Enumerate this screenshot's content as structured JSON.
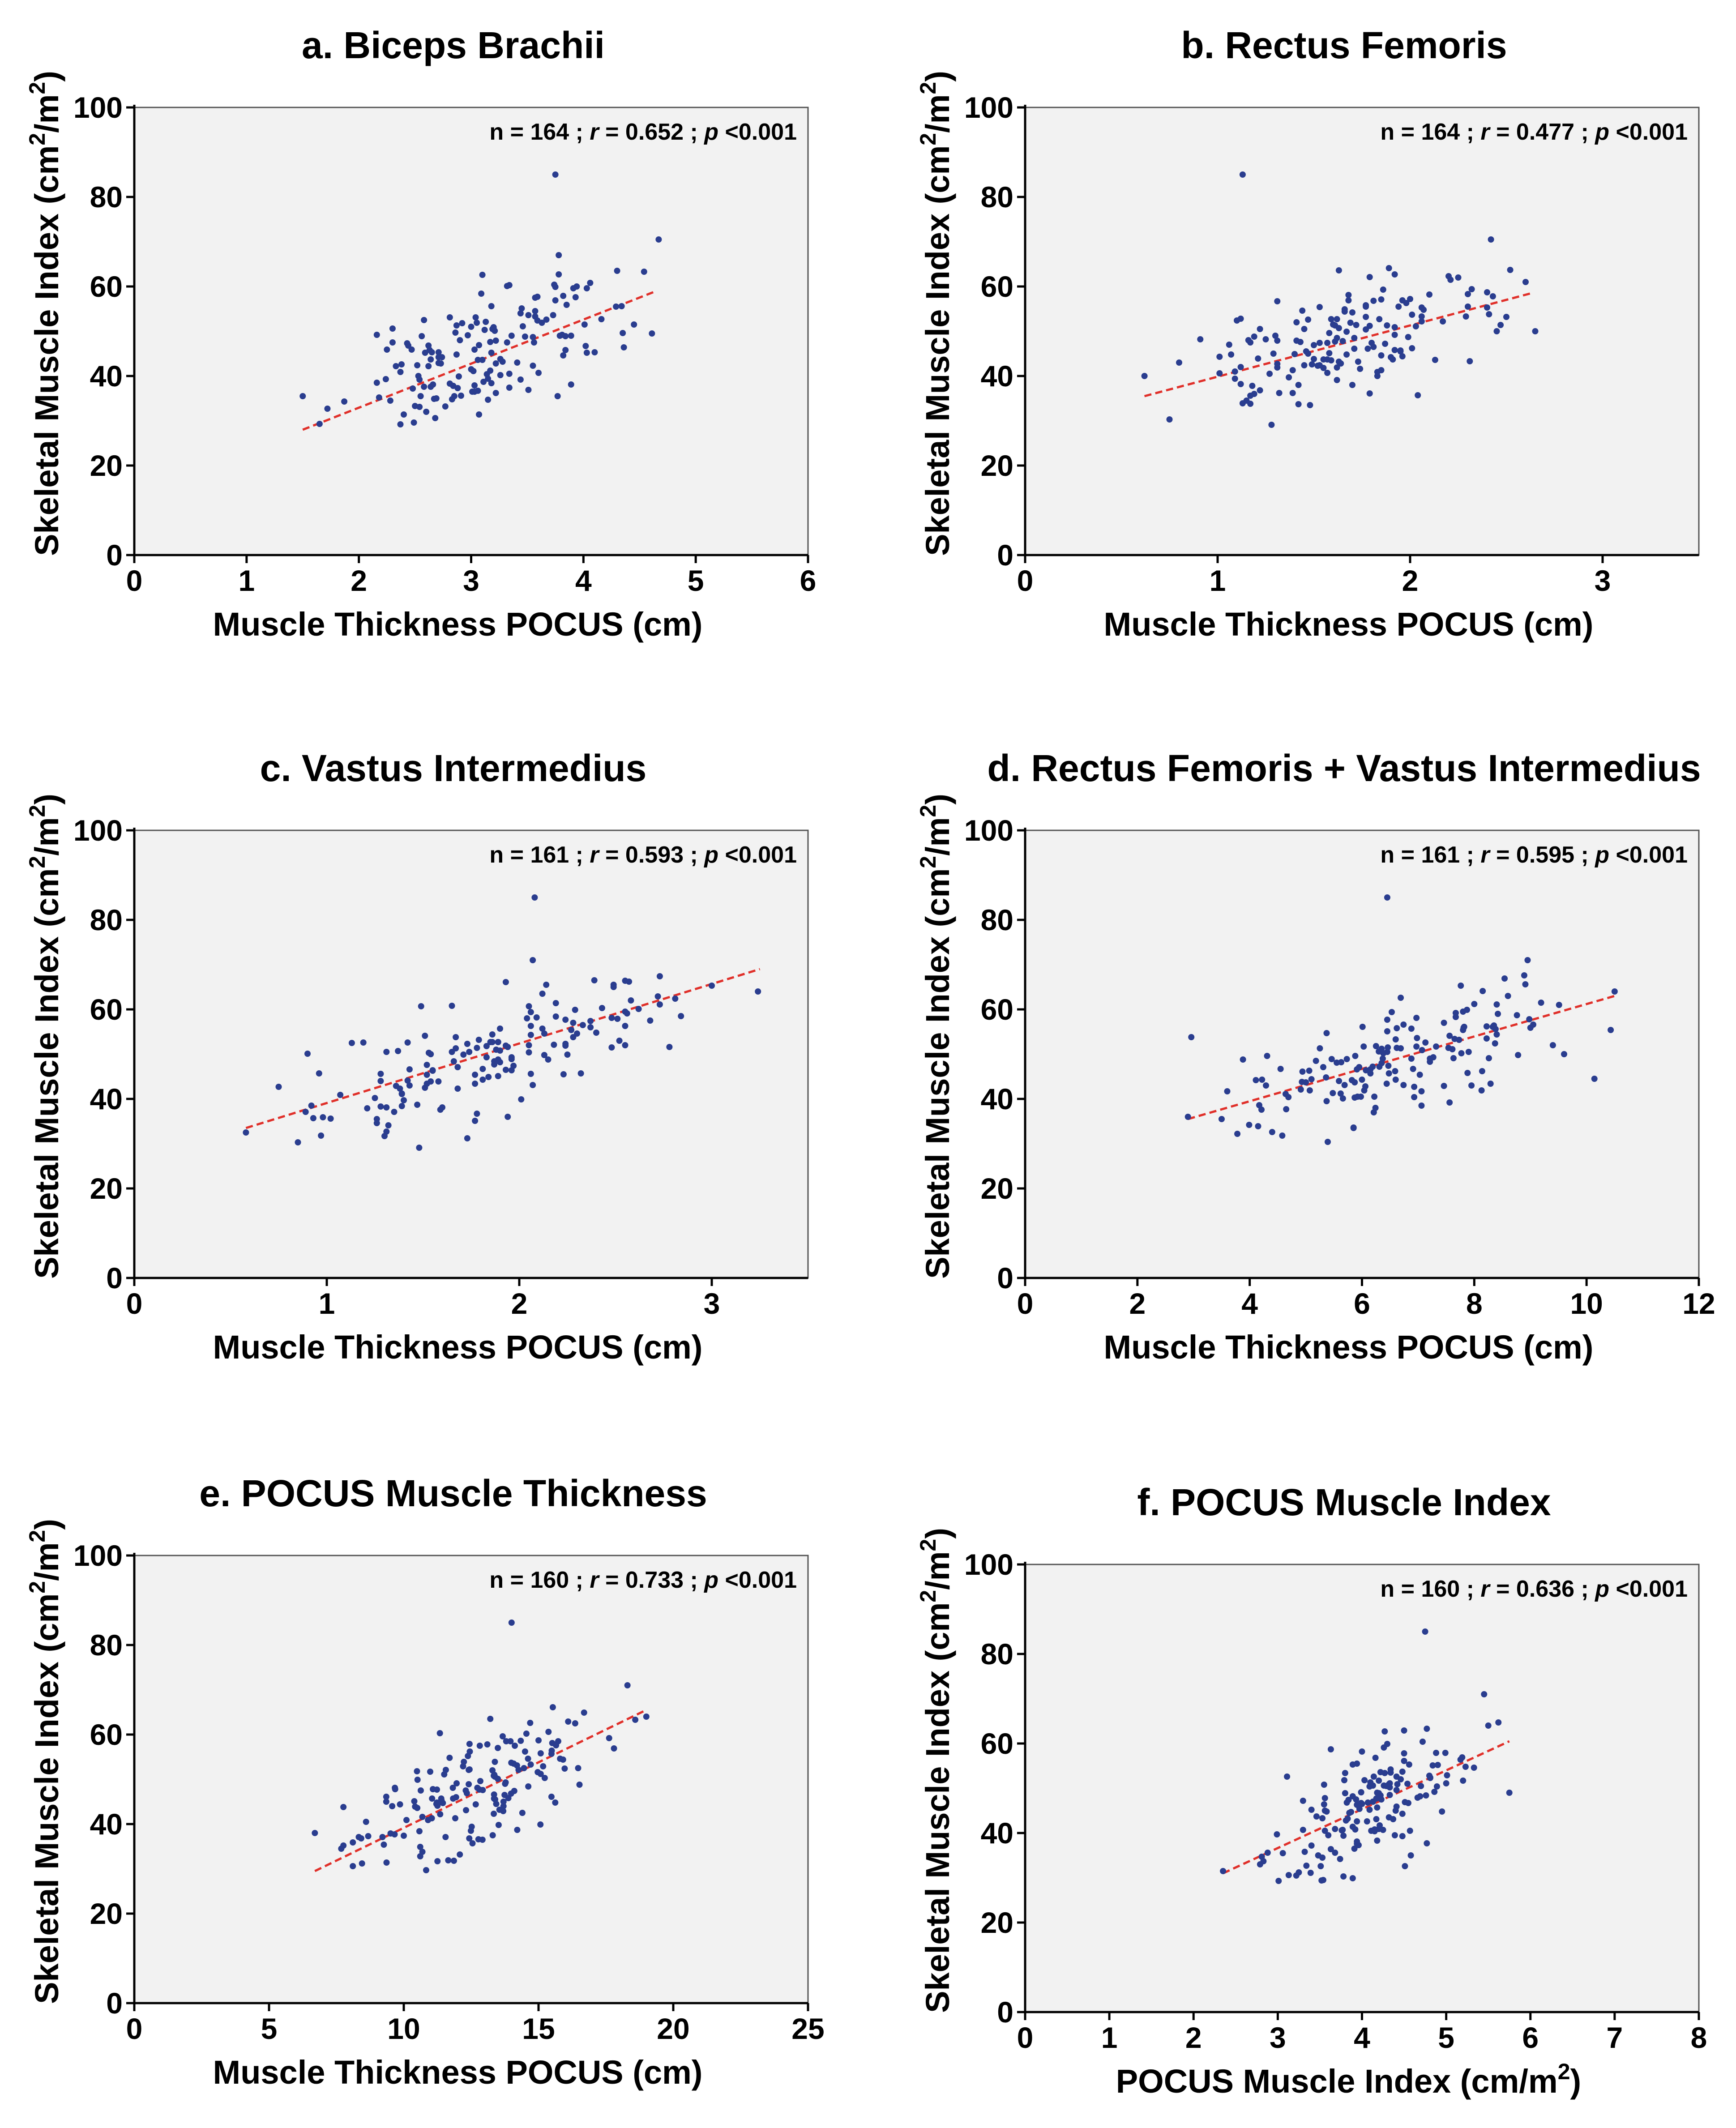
{
  "colors": {
    "points": "#2a3d8f",
    "fit_line": "#e0302a",
    "plot_bg": "#f2f2f2"
  },
  "chart_data": [
    {
      "type": "scatter",
      "title": "a. Biceps Brachii",
      "xlabel": "Muscle Thickness POCUS (cm)",
      "ylabel": "Skeletal Muscle Index (cm2/m2)",
      "ylabel_parts": [
        "Skeletal Muscle Index (cm",
        "2",
        "/m",
        "2",
        ")"
      ],
      "xlabel_parts": [],
      "xlim": [
        0,
        6
      ],
      "ylim": [
        0,
        100
      ],
      "xticks": [
        "0",
        "1",
        "2",
        "3",
        "4",
        "5",
        "6"
      ],
      "yticks": [
        "0",
        "20",
        "40",
        "60",
        "80",
        "100"
      ],
      "stats": {
        "n_text": "n = 164 ; ",
        "r_label": "r",
        "r_text": " = 0.652 ; ",
        "p_label": "p",
        "p_text": " <0.001"
      },
      "fit": {
        "x": [
          1.5,
          4.65
        ],
        "y": [
          28,
          59
        ]
      },
      "x_range": [
        1.5,
        4.7
      ],
      "seed": 11,
      "points": [
        [
          3.75,
          85
        ],
        [
          4.67,
          70.5
        ],
        [
          1.5,
          35.5
        ],
        [
          4.45,
          51.5
        ],
        [
          3.78,
          67
        ],
        [
          4.3,
          63.5
        ]
      ]
    },
    {
      "type": "scatter",
      "title": "b. Rectus Femoris",
      "xlabel": "Muscle Thickness POCUS (cm)",
      "ylabel": "Skeletal Muscle Index (cm2/m2)",
      "ylabel_parts": [
        "Skeletal Muscle Index (cm",
        "2",
        "/m",
        "2",
        ")"
      ],
      "xlabel_parts": [],
      "xlim": [
        0,
        3.5
      ],
      "ylim": [
        0,
        100
      ],
      "xticks": [
        "0",
        "1",
        "2",
        "3"
      ],
      "xtick_values": [
        0,
        1,
        2,
        3
      ],
      "yticks": [
        "0",
        "20",
        "40",
        "60",
        "80",
        "100"
      ],
      "stats": {
        "n_text": "n = 164 ; ",
        "r_label": "r",
        "r_text": " = 0.477 ; ",
        "p_label": "p",
        "p_text": " <0.001"
      },
      "fit": {
        "x": [
          0.62,
          2.63
        ],
        "y": [
          35.5,
          58.5
        ]
      },
      "x_range": [
        0.62,
        2.65
      ],
      "seed": 23,
      "points": [
        [
          1.13,
          85
        ],
        [
          2.42,
          70.5
        ],
        [
          2.65,
          50
        ],
        [
          2.6,
          61
        ],
        [
          0.62,
          40
        ]
      ]
    },
    {
      "type": "scatter",
      "title": "c. Vastus Intermedius",
      "xlabel": "Muscle Thickness POCUS (cm)",
      "ylabel": "Skeletal Muscle Index (cm2/m2)",
      "ylabel_parts": [
        "Skeletal Muscle Index (cm",
        "2",
        "/m",
        "2",
        ")"
      ],
      "xlabel_parts": [],
      "xlim": [
        0,
        3.5
      ],
      "ylim": [
        0,
        100
      ],
      "xticks": [
        "0",
        "1",
        "2",
        "3"
      ],
      "xtick_values": [
        0,
        1,
        2,
        3
      ],
      "yticks": [
        "0",
        "20",
        "40",
        "60",
        "80",
        "100"
      ],
      "stats": {
        "n_text": "n = 161 ; ",
        "r_label": "r",
        "r_text": " = 0.593 ; ",
        "p_label": "p",
        "p_text": " <0.001"
      },
      "fit": {
        "x": [
          0.58,
          3.25
        ],
        "y": [
          33.5,
          69
        ]
      },
      "x_range": [
        0.58,
        3.25
      ],
      "seed": 37,
      "points": [
        [
          2.08,
          85
        ],
        [
          2.07,
          71
        ],
        [
          3.24,
          64
        ],
        [
          2.55,
          52
        ],
        [
          0.58,
          32.5
        ]
      ]
    },
    {
      "type": "scatter",
      "title": "d. Rectus Femoris + Vastus Intermedius",
      "xlabel": "Muscle Thickness POCUS (cm)",
      "ylabel": "Skeletal Muscle Index (cm2/m2)",
      "ylabel_parts": [
        "Skeletal Muscle Index (cm",
        "2",
        "/m",
        "2",
        ")"
      ],
      "xlabel_parts": [],
      "xlim": [
        0,
        12
      ],
      "ylim": [
        0,
        100
      ],
      "xticks": [
        "0",
        "2",
        "4",
        "6",
        "8",
        "10",
        "12"
      ],
      "yticks": [
        "0",
        "20",
        "40",
        "60",
        "80",
        "100"
      ],
      "stats": {
        "n_text": "n = 161 ; ",
        "r_label": "r",
        "r_text": " = 0.595 ; ",
        "p_label": "p",
        "p_text": " <0.001"
      },
      "fit": {
        "x": [
          2.9,
          10.5
        ],
        "y": [
          35.5,
          63
        ]
      },
      "x_range": [
        2.9,
        10.5
      ],
      "seed": 41,
      "points": [
        [
          6.45,
          85
        ],
        [
          8.95,
          71
        ],
        [
          10.5,
          64
        ],
        [
          9.6,
          50
        ],
        [
          9.4,
          52
        ],
        [
          2.9,
          36
        ]
      ]
    },
    {
      "type": "scatter",
      "title": "e. POCUS Muscle Thickness",
      "xlabel": "Muscle Thickness POCUS (cm)",
      "ylabel": "Skeletal Muscle Index (cm2/m2)",
      "ylabel_parts": [
        "Skeletal Muscle Index (cm",
        "2",
        "/m",
        "2",
        ")"
      ],
      "xlabel_parts": [],
      "xlim": [
        0,
        25
      ],
      "ylim": [
        0,
        100
      ],
      "xticks": [
        "0",
        "5",
        "10",
        "15",
        "20",
        "25"
      ],
      "yticks": [
        "0",
        "20",
        "40",
        "60",
        "80",
        "100"
      ],
      "stats": {
        "n_text": "n = 160 ; ",
        "r_label": "r",
        "r_text": " = 0.733 ; ",
        "p_label": "p",
        "p_text": " <0.001"
      },
      "fit": {
        "x": [
          6.7,
          19
        ],
        "y": [
          29.5,
          65.5
        ]
      },
      "x_range": [
        6.7,
        19
      ],
      "seed": 53,
      "points": [
        [
          14,
          85
        ],
        [
          18.3,
          71
        ],
        [
          19,
          64
        ],
        [
          6.7,
          38
        ]
      ]
    },
    {
      "type": "scatter",
      "title": "f. POCUS Muscle Index",
      "xlabel": "POCUS Muscle Index (cm/m2)",
      "ylabel": "Skeletal Muscle Index (cm2/m2)",
      "ylabel_parts": [
        "Skeletal Muscle Index (cm",
        "2",
        "/m",
        "2",
        ")"
      ],
      "xlabel_parts": [
        "POCUS Muscle Index (cm/m",
        "2",
        ")"
      ],
      "xlim": [
        0,
        8
      ],
      "ylim": [
        0,
        100
      ],
      "xticks": [
        "0",
        "1",
        "2",
        "3",
        "4",
        "5",
        "6",
        "7",
        "8"
      ],
      "yticks": [
        "0",
        "20",
        "40",
        "60",
        "80",
        "100"
      ],
      "stats": {
        "n_text": "n = 160 ; ",
        "r_label": "r",
        "r_text": " = 0.636 ; ",
        "p_label": "p",
        "p_text": " <0.001"
      },
      "fit": {
        "x": [
          2.35,
          5.75
        ],
        "y": [
          31,
          60.5
        ]
      },
      "x_range": [
        2.35,
        5.75
      ],
      "seed": 67,
      "points": [
        [
          4.75,
          85
        ],
        [
          5.45,
          71
        ],
        [
          5.5,
          64
        ],
        [
          5.75,
          49
        ],
        [
          2.35,
          31.5
        ]
      ]
    }
  ]
}
